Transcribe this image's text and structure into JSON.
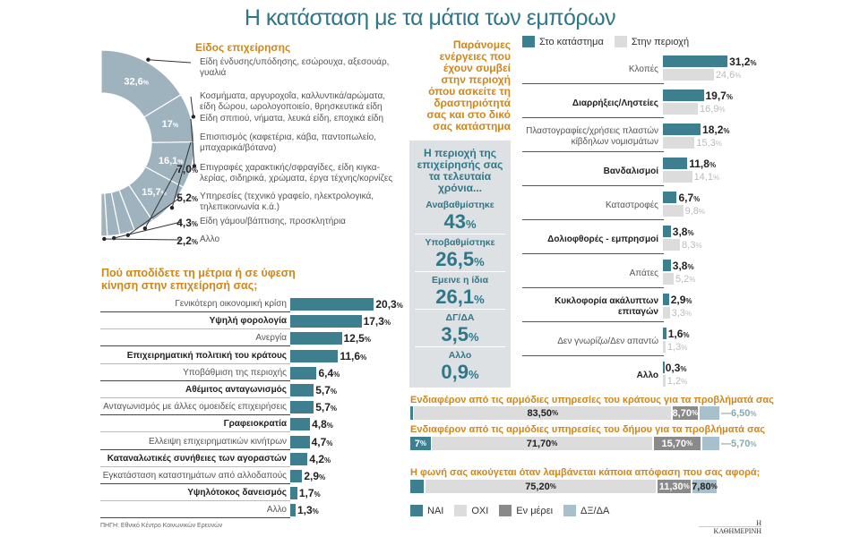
{
  "title": "Η κατάσταση με τα μάτια των εμπόρων",
  "colors": {
    "teal": "#3d7f8f",
    "donut": "#9fb3bf",
    "orange": "#d0861c",
    "light": "#dcdcdc",
    "dark": "#8a8a8a",
    "pale": "#a8c0cc"
  },
  "source": "ΠΗΓΗ: Εθνικό Κέντρο Κοινωνικών Ερευνών",
  "logo": "Η ΚΑΘΗΜΕΡΙΝΗ",
  "chart_data": [
    {
      "type": "pie",
      "title": "Είδος επιχείρησης",
      "categories": [
        "Είδη ένδυσης/υπόδησης, εσώρουχα, αξεσουάρ, γυαλιά",
        "Κοσμήματα, αργυροχοΐα, καλλυντικά/αρώματα, είδη δώρου, ωρολογοποιείο, θρησκευτικά είδη",
        "Είδη σπιτιού, νήματα, λευκά είδη, εποχικά είδη",
        "Επισιτισμός (καφετέρια, κάβα, παντοπωλείο, μπαχαρικά/βότανα)",
        "Επιγραφές χαρακτικής/σφραγίδες, είδη κιγκα-λερίας, σιδηρικά, χρώματα, έργα τέχνης/κορνίζες",
        "Υπηρεσίες (τεχνικό γραφείο, ηλεκτρολογικά, τηλεπικοινωνία κ.ά.)",
        "Είδη γάμου/βάπτισης, προσκλητήρια",
        "Αλλο"
      ],
      "values": [
        32.6,
        17,
        16.1,
        15.7,
        7.0,
        5.2,
        4.3,
        2.2
      ],
      "labels": [
        "32,6",
        "17",
        "16,1",
        "15,7",
        "7,0",
        "5,2",
        "4,3",
        "2,2"
      ]
    },
    {
      "type": "bar",
      "title": "Πού αποδίδετε τη μέτρια ή σε ύφεση κίνηση στην επιχείρησή σας;",
      "categories": [
        "Γενικότερη οικονομική κρίση",
        "Υψηλή φορολογία",
        "Ανεργία",
        "Επιχειρηματική πολιτική του κράτους",
        "Υποβάθμιση της περιοχής",
        "Αθέμιτος ανταγωνισμός",
        "Ανταγωνισμός με άλλες ομοειδείς επιχειρήσεις",
        "Γραφειοκρατία",
        "Ελλειψη επιχειρηματικών κινήτρων",
        "Καταναλωτικές συνήθειες των αγοραστών",
        "Εγκατάσταση καταστημάτων από αλλοδαπούς",
        "Υψηλότοκος δανεισμός",
        "Αλλο"
      ],
      "values": [
        20.3,
        17.3,
        12.5,
        11.6,
        6.4,
        5.7,
        5.7,
        4.8,
        4.7,
        4.2,
        2.9,
        1.7,
        1.3
      ],
      "labels": [
        "20,3",
        "17,3",
        "12,5",
        "11,6",
        "6,4",
        "5,7",
        "5,7",
        "4,8",
        "4,7",
        "4,2",
        "2,9",
        "1,7",
        "1,3"
      ]
    },
    {
      "type": "bar",
      "title": "Παράνομες ενέργειες που έχουν συμβεί στην περιοχή όπου ασκείτε τη δραστηριότητά σας και στο δικό σας κατάστημα",
      "legend": [
        "Στο κατάστημα",
        "Στην περιοχή"
      ],
      "categories": [
        "Κλοπές",
        "Διαρρήξεις/Ληστείες",
        "Πλαστογραφίες/χρήσεις πλαστών κίβδηλων νομισμάτων",
        "Βανδαλισμοί",
        "Καταστροφές",
        "Δολιοφθορές - εμπρησμοί",
        "Απάτες",
        "Κυκλοφορία ακάλυπτων επιταγών",
        "Δεν γνωρίζω/Δεν απαντώ",
        "Αλλο"
      ],
      "series": [
        {
          "name": "Στο κατάστημα",
          "values": [
            31.2,
            19.7,
            18.2,
            11.8,
            6.7,
            3.8,
            3.8,
            2.9,
            1.6,
            0.3
          ],
          "labels": [
            "31,2",
            "19,7",
            "18,2",
            "11,8",
            "6,7",
            "3,8",
            "3,8",
            "2,9",
            "1,6",
            "0,3"
          ]
        },
        {
          "name": "Στην περιοχή",
          "values": [
            24.6,
            16.9,
            15.3,
            14.1,
            9.8,
            8.3,
            5.2,
            3.3,
            1.3,
            1.2
          ],
          "labels": [
            "24,6",
            "16,9",
            "15,3",
            "14,1",
            "9,8",
            "8,3",
            "5,2",
            "3,3",
            "1,3",
            "1,2"
          ]
        }
      ]
    },
    {
      "type": "table",
      "title": "Η περιοχή της επιχείρησής σας τα τελευταία χρόνια...",
      "categories": [
        "Αναβαθμίστηκε",
        "Υποβαθμίστηκε",
        "Εμεινε η ίδια",
        "ΔΓ/ΔΑ",
        "Αλλο"
      ],
      "labels": [
        "43",
        "26,5",
        "26,1",
        "3,5",
        "0,9"
      ],
      "values": [
        43,
        26.5,
        26.1,
        3.5,
        0.9
      ]
    },
    {
      "type": "bar",
      "stacked": true,
      "legend": [
        "ΝΑΙ",
        "ΟΧΙ",
        "Εν μέρει",
        "ΔΞ/ΔΑ"
      ],
      "categories": [
        "Ενδιαφέρον από τις αρμόδιες υπηρεσίες του κράτους για τα προβλήματά σας",
        "Ενδιαφέρον από τις αρμόδιες υπηρεσίες του δήμου για τα προβλήματά σας",
        "Η φωνή σας ακούγεται όταν λαμβάνεται κάποια απόφαση που σας αφορά;"
      ],
      "series": [
        {
          "name": "ΝΑΙ",
          "values": [
            1.3,
            7,
            4.8
          ],
          "labels": [
            "1,30",
            "7",
            "4,80"
          ]
        },
        {
          "name": "ΟΧΙ",
          "values": [
            83.5,
            71.7,
            75.2
          ],
          "labels": [
            "83,50",
            "71,70",
            "75,20"
          ]
        },
        {
          "name": "Εν μέρει",
          "values": [
            8.7,
            15.7,
            11.3
          ],
          "labels": [
            "8,70",
            "15,70",
            "11,30"
          ]
        },
        {
          "name": "ΔΞ/ΔΑ",
          "values": [
            6.5,
            5.7,
            7.8
          ],
          "labels": [
            "6,50",
            "5,70",
            "7,80"
          ]
        }
      ]
    }
  ]
}
